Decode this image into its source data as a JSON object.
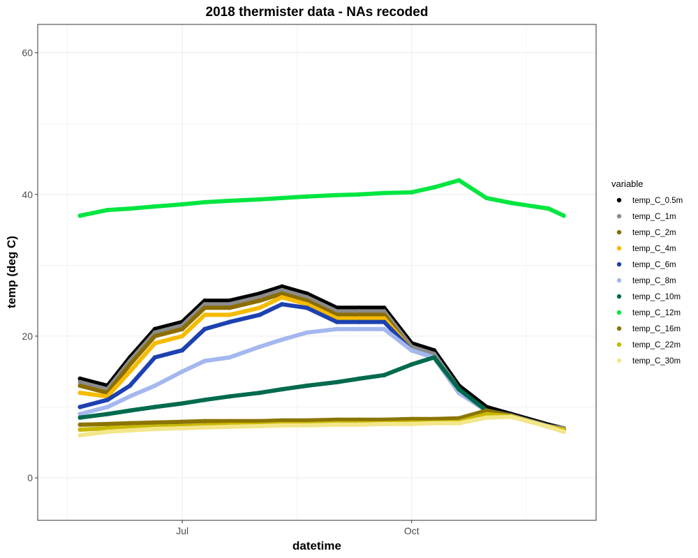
{
  "chart_data": {
    "type": "scatter",
    "title": "2018 thermister data - NAs recoded",
    "xlabel": "datetime",
    "ylabel": "temp (deg C)",
    "x_range": [
      "2018-05-04",
      "2018-12-14"
    ],
    "ylim": [
      -6,
      64
    ],
    "x_ticks": [
      {
        "label": "Jul",
        "date": "2018-07-01"
      },
      {
        "label": "Oct",
        "date": "2018-10-01"
      }
    ],
    "y_ticks": [
      0,
      20,
      40,
      60
    ],
    "grid": true,
    "legend": {
      "title": "variable",
      "position": "right"
    },
    "series": [
      {
        "name": "temp_C_0.5m",
        "color": "#000000",
        "points": [
          [
            "2018-05-21",
            14
          ],
          [
            "2018-06-01",
            13
          ],
          [
            "2018-06-10",
            17
          ],
          [
            "2018-06-20",
            21
          ],
          [
            "2018-07-01",
            22
          ],
          [
            "2018-07-10",
            25
          ],
          [
            "2018-07-20",
            25
          ],
          [
            "2018-08-01",
            26
          ],
          [
            "2018-08-10",
            27
          ],
          [
            "2018-08-20",
            26
          ],
          [
            "2018-09-01",
            24
          ],
          [
            "2018-09-10",
            24
          ],
          [
            "2018-09-20",
            24
          ],
          [
            "2018-10-01",
            19
          ],
          [
            "2018-10-10",
            18
          ],
          [
            "2018-10-20",
            13
          ],
          [
            "2018-10-31",
            10
          ],
          [
            "2018-11-10",
            9
          ],
          [
            "2018-11-25",
            7.5
          ],
          [
            "2018-12-01",
            7
          ]
        ]
      },
      {
        "name": "temp_C_1m",
        "color": "#8c8c8c",
        "points": [
          [
            "2018-05-21",
            13.5
          ],
          [
            "2018-06-01",
            12.5
          ],
          [
            "2018-06-10",
            16.5
          ],
          [
            "2018-06-20",
            20.5
          ],
          [
            "2018-07-01",
            21.5
          ],
          [
            "2018-07-10",
            24.5
          ],
          [
            "2018-07-20",
            24.5
          ],
          [
            "2018-08-01",
            25.5
          ],
          [
            "2018-08-10",
            26.5
          ],
          [
            "2018-08-20",
            25.5
          ],
          [
            "2018-09-01",
            23.5
          ],
          [
            "2018-09-10",
            23.5
          ],
          [
            "2018-09-20",
            23.5
          ],
          [
            "2018-10-01",
            18.5
          ],
          [
            "2018-10-10",
            17.5
          ],
          [
            "2018-10-20",
            12.5
          ],
          [
            "2018-10-31",
            9.5
          ],
          [
            "2018-11-10",
            8.8
          ],
          [
            "2018-11-25",
            7.3
          ],
          [
            "2018-12-01",
            7
          ]
        ]
      },
      {
        "name": "temp_C_2m",
        "color": "#8b6d00",
        "points": [
          [
            "2018-05-21",
            13
          ],
          [
            "2018-06-01",
            12
          ],
          [
            "2018-06-10",
            16
          ],
          [
            "2018-06-20",
            20
          ],
          [
            "2018-07-01",
            21
          ],
          [
            "2018-07-10",
            24
          ],
          [
            "2018-07-20",
            24
          ],
          [
            "2018-08-01",
            25
          ],
          [
            "2018-08-10",
            26
          ],
          [
            "2018-08-20",
            25
          ],
          [
            "2018-09-01",
            23
          ],
          [
            "2018-09-10",
            23
          ],
          [
            "2018-09-20",
            23
          ],
          [
            "2018-10-01",
            18
          ],
          [
            "2018-10-10",
            17
          ],
          [
            "2018-10-20",
            12
          ],
          [
            "2018-10-31",
            9.5
          ],
          [
            "2018-11-10",
            8.7
          ],
          [
            "2018-11-25",
            7.2
          ],
          [
            "2018-12-01",
            6.8
          ]
        ]
      },
      {
        "name": "temp_C_4m",
        "color": "#f5bb00",
        "points": [
          [
            "2018-05-21",
            12
          ],
          [
            "2018-06-01",
            11.5
          ],
          [
            "2018-06-10",
            15
          ],
          [
            "2018-06-20",
            19
          ],
          [
            "2018-07-01",
            20
          ],
          [
            "2018-07-10",
            23
          ],
          [
            "2018-07-20",
            23
          ],
          [
            "2018-08-01",
            24
          ],
          [
            "2018-08-10",
            25.5
          ],
          [
            "2018-08-20",
            24.5
          ],
          [
            "2018-09-01",
            22.5
          ],
          [
            "2018-09-10",
            22.5
          ],
          [
            "2018-09-20",
            22.5
          ],
          [
            "2018-10-01",
            18
          ],
          [
            "2018-10-10",
            17
          ],
          [
            "2018-10-20",
            12
          ],
          [
            "2018-10-31",
            9.5
          ],
          [
            "2018-11-10",
            8.7
          ],
          [
            "2018-11-25",
            7.2
          ],
          [
            "2018-12-01",
            6.8
          ]
        ]
      },
      {
        "name": "temp_C_6m",
        "color": "#1c41b0",
        "points": [
          [
            "2018-05-21",
            10
          ],
          [
            "2018-06-01",
            11
          ],
          [
            "2018-06-10",
            13
          ],
          [
            "2018-06-20",
            17
          ],
          [
            "2018-07-01",
            18
          ],
          [
            "2018-07-10",
            21
          ],
          [
            "2018-07-20",
            22
          ],
          [
            "2018-08-01",
            23
          ],
          [
            "2018-08-10",
            24.5
          ],
          [
            "2018-08-20",
            24
          ],
          [
            "2018-09-01",
            22
          ],
          [
            "2018-09-10",
            22
          ],
          [
            "2018-09-20",
            22
          ],
          [
            "2018-10-01",
            18
          ],
          [
            "2018-10-10",
            17
          ],
          [
            "2018-10-20",
            12
          ],
          [
            "2018-10-31",
            9.5
          ],
          [
            "2018-11-10",
            8.7
          ],
          [
            "2018-11-25",
            7.2
          ],
          [
            "2018-12-01",
            6.8
          ]
        ]
      },
      {
        "name": "temp_C_8m",
        "color": "#a4b7ef",
        "points": [
          [
            "2018-05-21",
            9
          ],
          [
            "2018-06-01",
            10
          ],
          [
            "2018-06-10",
            11.5
          ],
          [
            "2018-06-20",
            13
          ],
          [
            "2018-07-01",
            15
          ],
          [
            "2018-07-10",
            16.5
          ],
          [
            "2018-07-20",
            17
          ],
          [
            "2018-08-01",
            18.5
          ],
          [
            "2018-08-10",
            19.5
          ],
          [
            "2018-08-20",
            20.5
          ],
          [
            "2018-09-01",
            21
          ],
          [
            "2018-09-10",
            21
          ],
          [
            "2018-09-20",
            21
          ],
          [
            "2018-10-01",
            18
          ],
          [
            "2018-10-10",
            17
          ],
          [
            "2018-10-20",
            12
          ],
          [
            "2018-10-31",
            9.5
          ],
          [
            "2018-11-10",
            8.7
          ],
          [
            "2018-11-25",
            7.2
          ],
          [
            "2018-12-01",
            6.8
          ]
        ]
      },
      {
        "name": "temp_C_10m",
        "color": "#006a4e",
        "points": [
          [
            "2018-05-21",
            8.5
          ],
          [
            "2018-06-01",
            9
          ],
          [
            "2018-06-10",
            9.5
          ],
          [
            "2018-06-20",
            10
          ],
          [
            "2018-07-01",
            10.5
          ],
          [
            "2018-07-10",
            11
          ],
          [
            "2018-07-20",
            11.5
          ],
          [
            "2018-08-01",
            12
          ],
          [
            "2018-08-10",
            12.5
          ],
          [
            "2018-08-20",
            13
          ],
          [
            "2018-09-01",
            13.5
          ],
          [
            "2018-09-10",
            14
          ],
          [
            "2018-09-20",
            14.5
          ],
          [
            "2018-10-01",
            16
          ],
          [
            "2018-10-10",
            17
          ],
          [
            "2018-10-20",
            12.5
          ],
          [
            "2018-10-31",
            9.5
          ],
          [
            "2018-11-10",
            8.7
          ],
          [
            "2018-11-25",
            7.2
          ],
          [
            "2018-12-01",
            6.8
          ]
        ]
      },
      {
        "name": "temp_C_12m",
        "color": "#00e640",
        "points": [
          [
            "2018-05-21",
            37
          ],
          [
            "2018-06-01",
            37.8
          ],
          [
            "2018-06-10",
            38
          ],
          [
            "2018-06-20",
            38.3
          ],
          [
            "2018-07-01",
            38.6
          ],
          [
            "2018-07-10",
            38.9
          ],
          [
            "2018-07-20",
            39.1
          ],
          [
            "2018-08-01",
            39.3
          ],
          [
            "2018-08-10",
            39.5
          ],
          [
            "2018-08-20",
            39.7
          ],
          [
            "2018-09-01",
            39.9
          ],
          [
            "2018-09-10",
            40
          ],
          [
            "2018-09-20",
            40.2
          ],
          [
            "2018-10-01",
            40.3
          ],
          [
            "2018-10-10",
            41
          ],
          [
            "2018-10-20",
            42
          ],
          [
            "2018-10-31",
            39.5
          ],
          [
            "2018-11-10",
            38.8
          ],
          [
            "2018-11-25",
            38
          ],
          [
            "2018-12-01",
            37
          ]
        ]
      },
      {
        "name": "temp_C_16m",
        "color": "#8b7500",
        "points": [
          [
            "2018-05-21",
            7.5
          ],
          [
            "2018-06-01",
            7.6
          ],
          [
            "2018-06-10",
            7.7
          ],
          [
            "2018-06-20",
            7.8
          ],
          [
            "2018-07-01",
            7.9
          ],
          [
            "2018-07-10",
            8
          ],
          [
            "2018-07-20",
            8
          ],
          [
            "2018-08-01",
            8
          ],
          [
            "2018-08-10",
            8.1
          ],
          [
            "2018-08-20",
            8.1
          ],
          [
            "2018-09-01",
            8.2
          ],
          [
            "2018-09-10",
            8.2
          ],
          [
            "2018-09-20",
            8.2
          ],
          [
            "2018-10-01",
            8.3
          ],
          [
            "2018-10-10",
            8.3
          ],
          [
            "2018-10-20",
            8.4
          ],
          [
            "2018-10-31",
            9.5
          ],
          [
            "2018-11-10",
            8.7
          ],
          [
            "2018-11-25",
            7.2
          ],
          [
            "2018-12-01",
            6.8
          ]
        ]
      },
      {
        "name": "temp_C_22m",
        "color": "#c9b800",
        "points": [
          [
            "2018-05-21",
            6.8
          ],
          [
            "2018-06-01",
            7
          ],
          [
            "2018-06-10",
            7.1
          ],
          [
            "2018-06-20",
            7.2
          ],
          [
            "2018-07-01",
            7.3
          ],
          [
            "2018-07-10",
            7.4
          ],
          [
            "2018-07-20",
            7.5
          ],
          [
            "2018-08-01",
            7.5
          ],
          [
            "2018-08-10",
            7.6
          ],
          [
            "2018-08-20",
            7.6
          ],
          [
            "2018-09-01",
            7.7
          ],
          [
            "2018-09-10",
            7.7
          ],
          [
            "2018-09-20",
            7.7
          ],
          [
            "2018-10-01",
            7.8
          ],
          [
            "2018-10-10",
            7.8
          ],
          [
            "2018-10-20",
            7.9
          ],
          [
            "2018-10-31",
            9
          ],
          [
            "2018-11-10",
            8.7
          ],
          [
            "2018-11-25",
            7.2
          ],
          [
            "2018-12-01",
            6.8
          ]
        ]
      },
      {
        "name": "temp_C_30m",
        "color": "#f3e68a",
        "points": [
          [
            "2018-05-21",
            6
          ],
          [
            "2018-06-01",
            6.5
          ],
          [
            "2018-06-10",
            6.7
          ],
          [
            "2018-06-20",
            6.9
          ],
          [
            "2018-07-01",
            7
          ],
          [
            "2018-07-10",
            7.1
          ],
          [
            "2018-07-20",
            7.2
          ],
          [
            "2018-08-01",
            7.3
          ],
          [
            "2018-08-10",
            7.4
          ],
          [
            "2018-08-20",
            7.4
          ],
          [
            "2018-09-01",
            7.5
          ],
          [
            "2018-09-10",
            7.5
          ],
          [
            "2018-09-20",
            7.6
          ],
          [
            "2018-10-01",
            7.6
          ],
          [
            "2018-10-10",
            7.7
          ],
          [
            "2018-10-20",
            7.7
          ],
          [
            "2018-10-31",
            8.5
          ],
          [
            "2018-11-10",
            8.6
          ],
          [
            "2018-11-25",
            7.2
          ],
          [
            "2018-12-01",
            6.5
          ]
        ]
      }
    ]
  }
}
